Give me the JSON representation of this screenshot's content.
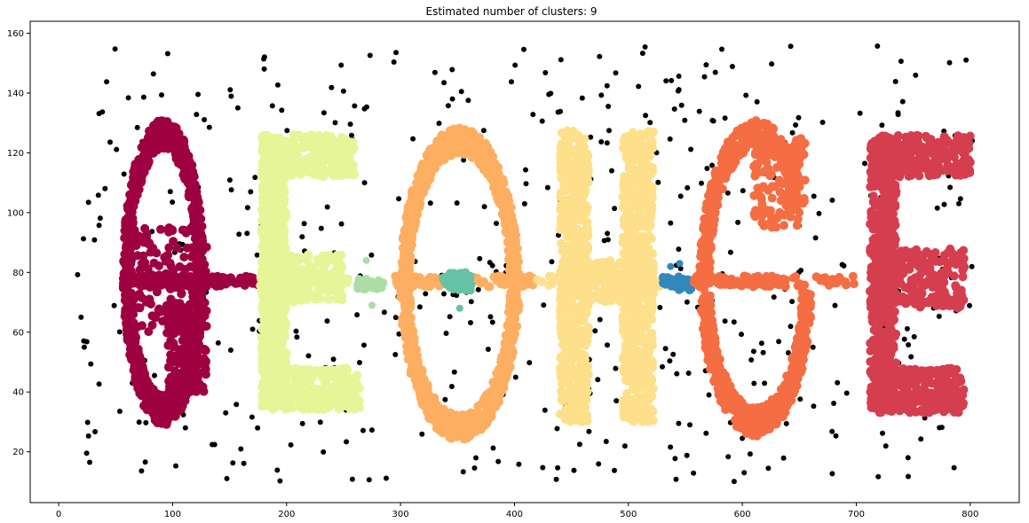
{
  "chart_data": {
    "type": "scatter",
    "title": "Estimated number of clusters: 9",
    "xlabel": "",
    "ylabel": "",
    "xlim": [
      -25,
      843
    ],
    "ylim": [
      3,
      164
    ],
    "x_ticks": [
      0,
      100,
      200,
      300,
      400,
      500,
      600,
      700,
      800
    ],
    "y_ticks": [
      20,
      40,
      60,
      80,
      100,
      120,
      140,
      160
    ],
    "grid": false,
    "legend": "none",
    "noise_color": "#000000",
    "clusters": [
      {
        "cluster": 0,
        "color": "#9e0142",
        "x_range": [
          50,
          140
        ],
        "y_range": [
          30,
          130
        ],
        "shape": "letter-loop"
      },
      {
        "cluster": 1,
        "color": "#d53e4f",
        "x_range": [
          710,
          800
        ],
        "y_range": [
          33,
          128
        ],
        "shape": "letter-E"
      },
      {
        "cluster": 2,
        "color": "#f46d43",
        "x_range": [
          560,
          660
        ],
        "y_range": [
          25,
          135
        ],
        "shape": "letter-C"
      },
      {
        "cluster": 3,
        "color": "#fdae61",
        "x_range": [
          295,
          410
        ],
        "y_range": [
          22,
          128
        ],
        "shape": "letter-O"
      },
      {
        "cluster": 4,
        "color": "#fee08b",
        "x_range": [
          430,
          530
        ],
        "y_range": [
          24,
          133
        ],
        "shape": "letter-H"
      },
      {
        "cluster": 5,
        "color": "#e6f598",
        "x_range": [
          175,
          265
        ],
        "y_range": [
          23,
          135
        ],
        "shape": "letter-E"
      },
      {
        "cluster": 6,
        "color": "#abdda4",
        "x_range": [
          260,
          285
        ],
        "y_range": [
          68,
          85
        ],
        "shape": "bridge"
      },
      {
        "cluster": 7,
        "color": "#66c2a5",
        "x_range": [
          335,
          365
        ],
        "y_range": [
          68,
          80
        ],
        "shape": "blob"
      },
      {
        "cluster": 8,
        "color": "#3288bd",
        "x_range": [
          530,
          555
        ],
        "y_range": [
          75,
          84
        ],
        "shape": "blob"
      }
    ],
    "noise_points": {
      "count": 520,
      "x_range": [
        15,
        805
      ],
      "y_range": [
        10,
        156
      ],
      "color": "#000000"
    }
  }
}
